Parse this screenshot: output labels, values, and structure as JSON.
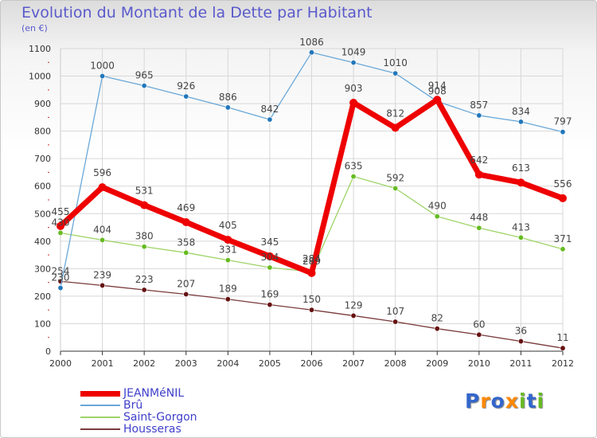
{
  "colors": {
    "title": "#5a5acc",
    "axis": "#333333",
    "grid": "#d7d7d7"
  },
  "chart_data": {
    "type": "line",
    "title": "Evolution du Montant de la Dette par Habitant",
    "unit_label": "(en €)",
    "xlabel": "",
    "ylabel": "",
    "ylim": [
      0,
      1100
    ],
    "yticks": [
      0,
      100,
      200,
      300,
      400,
      500,
      600,
      700,
      800,
      900,
      1000,
      1100
    ],
    "categories": [
      "2000",
      "2001",
      "2002",
      "2003",
      "2004",
      "2005",
      "2006",
      "2007",
      "2008",
      "2009",
      "2010",
      "2011",
      "2012"
    ],
    "series": [
      {
        "name": "JEANMéNIL",
        "color": "#ee0000",
        "marker": "#ee0000",
        "width": 7,
        "values": [
          455,
          596,
          531,
          469,
          405,
          345,
          284,
          903,
          812,
          914,
          642,
          613,
          556
        ]
      },
      {
        "name": "Brû",
        "color": "#6aa8d8",
        "marker": "#2277bb",
        "width": 1.3,
        "values": [
          230,
          1000,
          965,
          926,
          886,
          842,
          1086,
          1049,
          1010,
          908,
          857,
          834,
          797
        ]
      },
      {
        "name": "Saint-Gorgon",
        "color": "#9ed468",
        "marker": "#66bb22",
        "width": 1.3,
        "values": [
          430,
          404,
          380,
          358,
          331,
          304,
          289,
          635,
          592,
          490,
          448,
          413,
          371
        ]
      },
      {
        "name": "Housseras",
        "color": "#7a3a3a",
        "marker": "#661111",
        "width": 1.3,
        "values": [
          254,
          239,
          223,
          207,
          189,
          169,
          150,
          129,
          107,
          82,
          60,
          36,
          11
        ]
      }
    ],
    "legend_position": "bottom-left"
  },
  "logo": {
    "text": "Proxiti",
    "letters": [
      "P",
      "r",
      "o",
      "x",
      "i",
      "t",
      "i"
    ],
    "colors": [
      "#3366cc",
      "#ff8800",
      "#3366cc",
      "#ff8800",
      "#66bb22",
      "#3366cc",
      "#66bb22"
    ]
  }
}
